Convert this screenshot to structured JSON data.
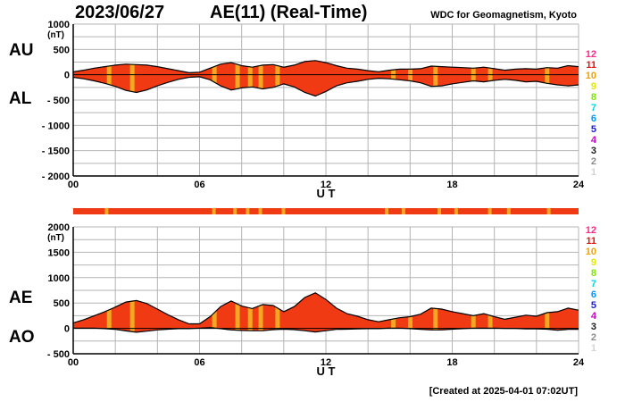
{
  "header": {
    "date": "2023/06/27",
    "title": "AE(11) (Real-Time)",
    "source": "WDC for Geomagnetism, Kyoto"
  },
  "footer": {
    "created": "[Created at 2025-04-01 07:02UT]"
  },
  "colors": {
    "fill": "#f03a14",
    "highlight": "#f5a623",
    "outline": "#000000",
    "grid": "#b4b4b4"
  },
  "legend_levels": [
    {
      "label": "12",
      "color": "#ff2a8a"
    },
    {
      "label": "11",
      "color": "#e8120c"
    },
    {
      "label": "10",
      "color": "#f0a000"
    },
    {
      "label": "9",
      "color": "#e6e600"
    },
    {
      "label": "8",
      "color": "#7ee600"
    },
    {
      "label": "7",
      "color": "#00d8e0"
    },
    {
      "label": "6",
      "color": "#0096ff"
    },
    {
      "label": "5",
      "color": "#1a1ad8"
    },
    {
      "label": "4",
      "color": "#c800c8"
    },
    {
      "label": "3",
      "color": "#202020"
    },
    {
      "label": "2",
      "color": "#8c8c8c"
    },
    {
      "label": "1",
      "color": "#d4d4d4"
    }
  ],
  "chart_data": [
    {
      "type": "area",
      "name": "AU/AL",
      "labels": [
        "AU",
        "AL"
      ],
      "xlabel": "U T",
      "ylabel_unit": "(nT)",
      "xlim": [
        0,
        24
      ],
      "ylim": [
        -2000,
        1000
      ],
      "xticks": [
        "00",
        "06",
        "12",
        "18",
        "24"
      ],
      "yticks": [
        "1000",
        "500",
        "0",
        "- 500",
        "- 1000",
        "- 1500",
        "- 2000"
      ],
      "x": [
        0,
        0.5,
        1,
        1.5,
        2,
        2.5,
        3,
        3.5,
        4,
        4.5,
        5,
        5.5,
        6,
        6.5,
        7,
        7.5,
        8,
        8.5,
        9,
        9.5,
        10,
        10.5,
        11,
        11.5,
        12,
        12.5,
        13,
        13.5,
        14,
        14.5,
        15,
        15.5,
        16,
        16.5,
        17,
        17.5,
        18,
        18.5,
        19,
        19.5,
        20,
        20.5,
        21,
        21.5,
        22,
        22.5,
        23,
        23.5,
        24
      ],
      "series": [
        {
          "name": "AU",
          "values": [
            60,
            90,
            130,
            160,
            190,
            210,
            200,
            190,
            160,
            120,
            80,
            40,
            50,
            130,
            210,
            240,
            180,
            150,
            190,
            200,
            150,
            190,
            260,
            280,
            240,
            180,
            130,
            110,
            80,
            60,
            90,
            110,
            110,
            120,
            170,
            160,
            150,
            140,
            130,
            150,
            120,
            90,
            110,
            120,
            110,
            140,
            130,
            180,
            160
          ]
        },
        {
          "name": "AL",
          "values": [
            -50,
            -80,
            -120,
            -170,
            -230,
            -310,
            -350,
            -300,
            -220,
            -150,
            -90,
            -50,
            -40,
            -100,
            -220,
            -300,
            -260,
            -240,
            -280,
            -250,
            -180,
            -240,
            -350,
            -420,
            -330,
            -220,
            -160,
            -130,
            -90,
            -70,
            -80,
            -100,
            -120,
            -160,
            -230,
            -220,
            -180,
            -150,
            -120,
            -140,
            -110,
            -90,
            -110,
            -140,
            -130,
            -170,
            -200,
            -220,
            -200
          ]
        }
      ]
    },
    {
      "type": "area",
      "name": "AE/AO",
      "labels": [
        "AE",
        "AO"
      ],
      "xlabel": "U T",
      "ylabel_unit": "(nT)",
      "xlim": [
        0,
        24
      ],
      "ylim": [
        -500,
        2000
      ],
      "xticks": [
        "00",
        "06",
        "12",
        "18",
        "24"
      ],
      "yticks": [
        "2000",
        "1500",
        "1000",
        "500",
        "0",
        "- 500"
      ],
      "x": [
        0,
        0.5,
        1,
        1.5,
        2,
        2.5,
        3,
        3.5,
        4,
        4.5,
        5,
        5.5,
        6,
        6.5,
        7,
        7.5,
        8,
        8.5,
        9,
        9.5,
        10,
        10.5,
        11,
        11.5,
        12,
        12.5,
        13,
        13.5,
        14,
        14.5,
        15,
        15.5,
        16,
        16.5,
        17,
        17.5,
        18,
        18.5,
        19,
        19.5,
        20,
        20.5,
        21,
        21.5,
        22,
        22.5,
        23,
        23.5,
        24
      ],
      "series": [
        {
          "name": "AE",
          "values": [
            110,
            170,
            250,
            330,
            420,
            520,
            550,
            490,
            380,
            270,
            170,
            90,
            90,
            230,
            430,
            540,
            440,
            390,
            470,
            450,
            330,
            430,
            610,
            700,
            570,
            400,
            290,
            240,
            170,
            130,
            170,
            210,
            230,
            280,
            400,
            380,
            330,
            290,
            250,
            290,
            230,
            180,
            220,
            260,
            240,
            310,
            330,
            400,
            360
          ]
        },
        {
          "name": "AO",
          "values": [
            5,
            5,
            5,
            -5,
            -20,
            -50,
            -75,
            -55,
            -30,
            -15,
            -5,
            -5,
            5,
            15,
            -5,
            -30,
            -40,
            -45,
            -45,
            -25,
            -15,
            -25,
            -45,
            -70,
            -45,
            -20,
            -15,
            -10,
            -5,
            -5,
            5,
            5,
            -5,
            -20,
            -30,
            -30,
            -15,
            -5,
            5,
            5,
            5,
            0,
            0,
            -10,
            -10,
            -15,
            -35,
            -20,
            -20
          ]
        }
      ]
    }
  ]
}
